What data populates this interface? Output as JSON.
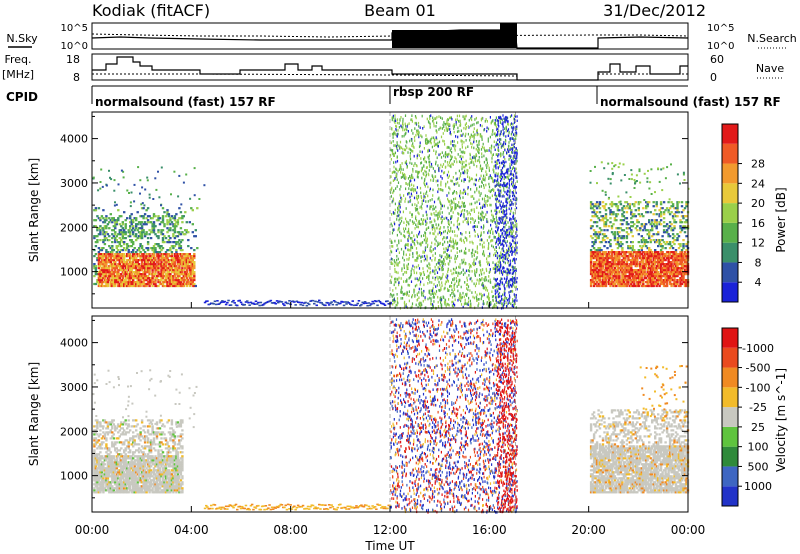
{
  "header": {
    "site": "Kodiak (fitACF)",
    "beam": "Beam 01",
    "date": "31/Dec/2012"
  },
  "panels": {
    "nsky_label": "N.Sky",
    "nsky_ticks": [
      "10^5",
      "10^0"
    ],
    "nsearch_label": "N.Search",
    "nsearch_ticks": [
      "10^5",
      "10^0"
    ],
    "freq_label": "Freq.",
    "freq_unit": "[MHz]",
    "freq_ticks": [
      "18",
      "8"
    ],
    "nave_label": "Nave",
    "nave_ticks": [
      "60",
      "0"
    ],
    "cpid_label": "CPID",
    "cpid_segments": [
      {
        "label": "normalsound (fast) 157 RF",
        "start_h": 0,
        "end_h": 12
      },
      {
        "label": "rbsp 200 RF",
        "start_h": 12,
        "end_h": 20
      },
      {
        "label": "normalsound (fast) 157 RF",
        "start_h": 20,
        "end_h": 24
      }
    ]
  },
  "axes": {
    "ylabel": "Slant Range [km]",
    "yticks": [
      1000,
      2000,
      3000,
      4000
    ],
    "yrange_km": [
      180,
      4600
    ],
    "xlabel": "Time UT",
    "xticks": [
      "00:00",
      "04:00",
      "08:00",
      "12:00",
      "16:00",
      "20:00",
      "00:00"
    ],
    "xrange_h": [
      0,
      24
    ]
  },
  "power_colorbar": {
    "label": "Power [dB]",
    "ticks": [
      "4",
      "8",
      "12",
      "16",
      "20",
      "24",
      "28"
    ],
    "colors": [
      "#1a22d8",
      "#2f51a6",
      "#3a8f6a",
      "#58b04a",
      "#9ad04a",
      "#e8c93a",
      "#f29a2e",
      "#ef5a26",
      "#e21a1a"
    ]
  },
  "velocity_colorbar": {
    "label": "Velocity [m s^-1]",
    "ticks": [
      "1000",
      "500",
      "100",
      "25",
      "-25",
      "-100",
      "-500",
      "-1000"
    ],
    "colors": [
      "#2233c8",
      "#3e66c2",
      "#2f8a3a",
      "#5fc43e",
      "#c8c8c0",
      "#f2bb2a",
      "#f08a22",
      "#ea4a1e",
      "#e01414"
    ]
  },
  "chart_data": {
    "type": "heatmap",
    "x_unit": "hours UT",
    "y_unit": "slant range km",
    "data_gap_h": [
      17.1,
      20.0
    ],
    "power_regions": [
      {
        "t": [
          0.1,
          4.1
        ],
        "r": [
          800,
          1400
        ],
        "level": "high"
      },
      {
        "t": [
          0.1,
          4.0
        ],
        "r": [
          1400,
          2400
        ],
        "level": "medium"
      },
      {
        "t": [
          12.0,
          17.0
        ],
        "r": [
          200,
          4600
        ],
        "level": "low"
      },
      {
        "t": [
          20.0,
          24.0
        ],
        "r": [
          700,
          1500
        ],
        "level": "high"
      }
    ],
    "velocity_regions": [
      {
        "t": [
          0.1,
          3.5
        ],
        "r": [
          700,
          2200
        ],
        "value": "-25..25"
      },
      {
        "t": [
          12.0,
          17.0
        ],
        "r": [
          200,
          4600
        ],
        "value": "mixed"
      },
      {
        "t": [
          20.0,
          24.0
        ],
        "r": [
          700,
          2500
        ],
        "value": "-25..25"
      }
    ]
  }
}
